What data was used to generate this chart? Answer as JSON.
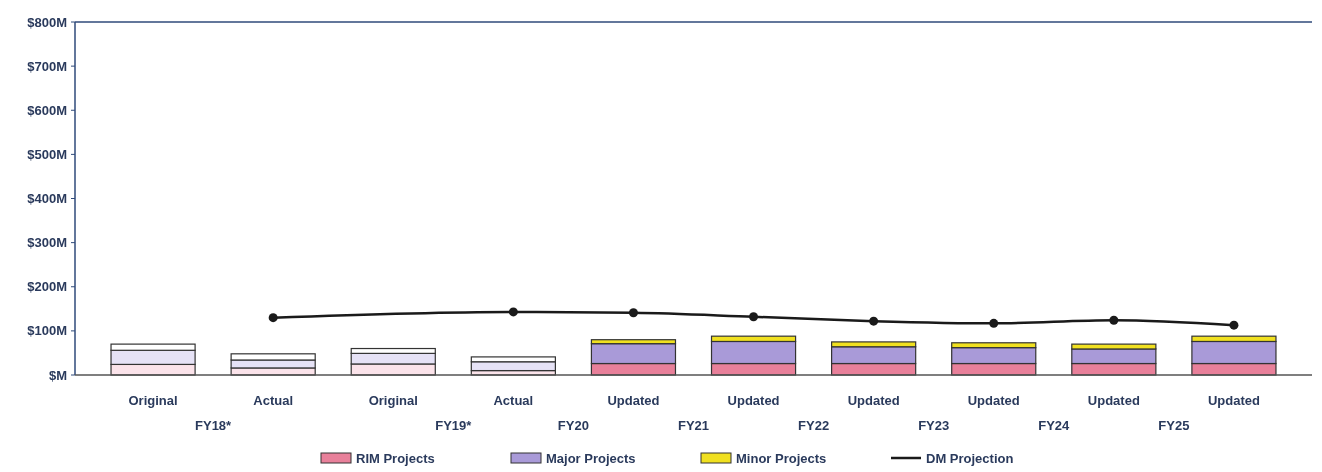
{
  "chart_data": {
    "type": "bar",
    "stacked": true,
    "categories": [
      "Original",
      "Actual",
      "Original",
      "Actual",
      "Updated",
      "Updated",
      "Updated",
      "Updated",
      "Updated",
      "Updated"
    ],
    "series": [
      {
        "name": "RIM Projects",
        "color": "#e8809a",
        "colors": [
          "#fbe3ea",
          "#fbe3ea",
          "#fbe3ea",
          "#fbe3ea",
          "#e8809a",
          "#e8809a",
          "#e8809a",
          "#e8809a",
          "#e8809a",
          "#e8809a"
        ],
        "values": [
          24,
          16,
          25,
          10,
          26,
          26,
          26,
          26,
          26,
          26
        ]
      },
      {
        "name": "Major Projects",
        "color": "#a99ad8",
        "colors": [
          "#e6e2f6",
          "#e6e2f6",
          "#e6e2f6",
          "#e6e2f6",
          "#a99ad8",
          "#a99ad8",
          "#a99ad8",
          "#a99ad8",
          "#a99ad8",
          "#a99ad8"
        ],
        "values": [
          32,
          18,
          24,
          20,
          45,
          50,
          38,
          36,
          33,
          50
        ]
      },
      {
        "name": "Minor Projects",
        "color": "#f0e020",
        "colors": [
          "#ffffff",
          "#ffffff",
          "#ffffff",
          "#ffffff",
          "#f0e020",
          "#f0e020",
          "#f0e020",
          "#f0e020",
          "#f0e020",
          "#f0e020"
        ],
        "values": [
          14,
          14,
          11,
          11,
          9,
          12,
          11,
          11,
          11,
          12
        ]
      },
      {
        "name": "DM Projection",
        "type": "line",
        "color": "#1a1a1a",
        "values": [
          null,
          130,
          null,
          143,
          141,
          132,
          122,
          117,
          124,
          113
        ]
      }
    ],
    "ylim": [
      0,
      800
    ],
    "yticks": [
      {
        "value": 0,
        "label": "$M"
      },
      {
        "value": 100,
        "label": "$100M"
      },
      {
        "value": 200,
        "label": "$200M"
      },
      {
        "value": 300,
        "label": "$300M"
      },
      {
        "value": 400,
        "label": "$400M"
      },
      {
        "value": 500,
        "label": "$500M"
      },
      {
        "value": 600,
        "label": "$600M"
      },
      {
        "value": 700,
        "label": "$700M"
      },
      {
        "value": 800,
        "label": "$800M"
      }
    ],
    "annotations": [
      "FY18*",
      "FY19*",
      "FY20",
      "FY21",
      "FY22",
      "FY23",
      "FY24",
      "FY25"
    ],
    "marker": "circle",
    "legend": "bottom",
    "grid": false
  }
}
